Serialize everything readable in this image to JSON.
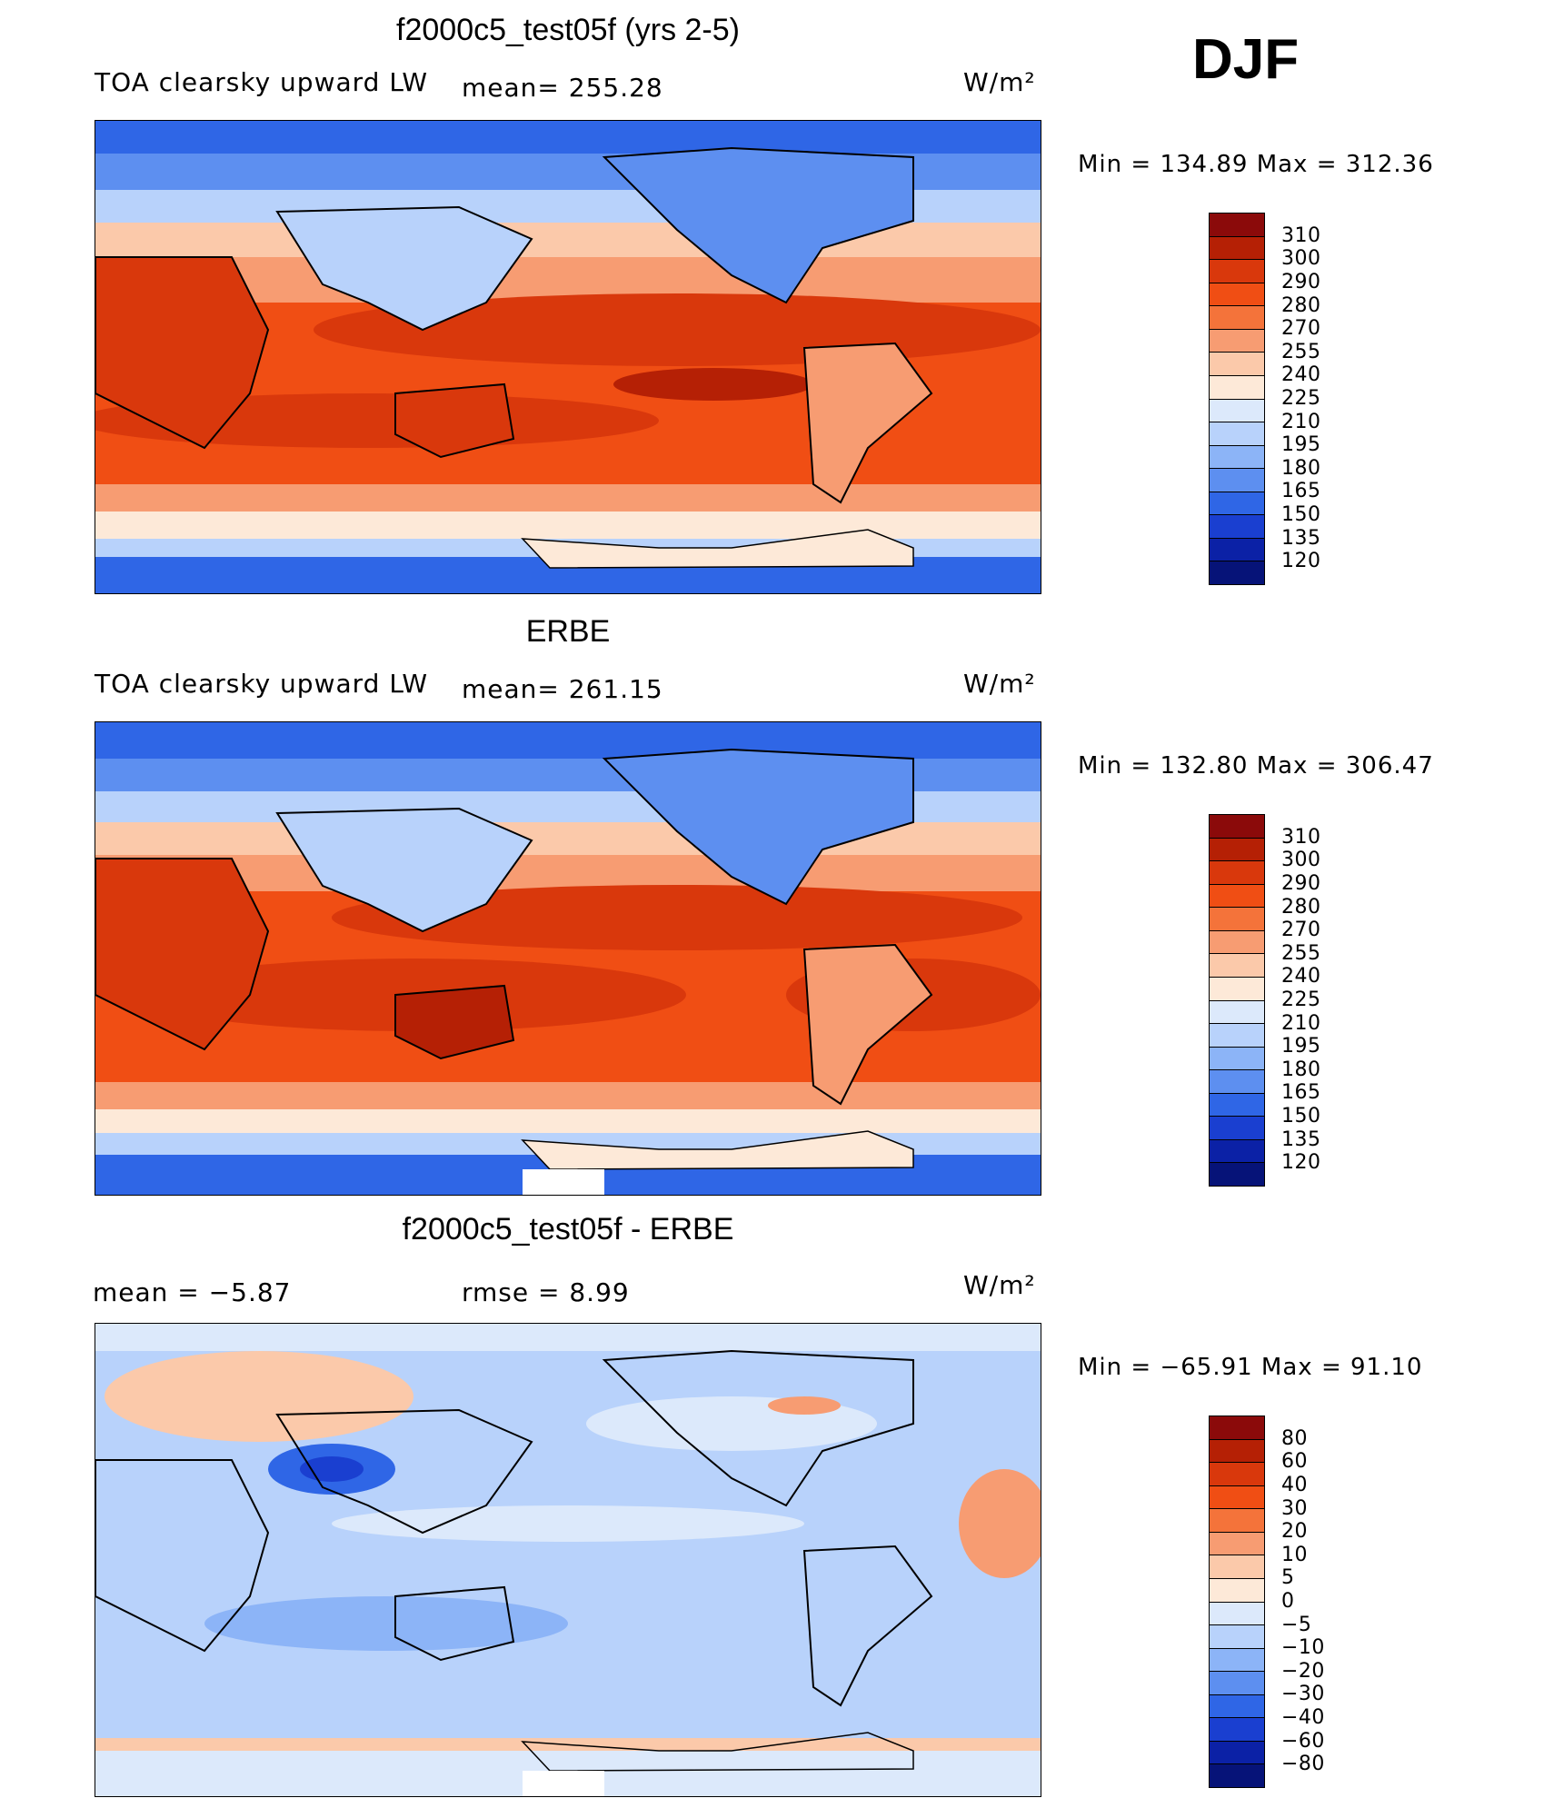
{
  "season": "DJF",
  "units_label": "W/m²",
  "panels": [
    {
      "id": "model",
      "title": "f2000c5_test05f (yrs 2-5)",
      "subtitle_left": "TOA clearsky upward LW",
      "subtitle_mid": "mean= 255.28",
      "units": "W/m²",
      "minmax": "Min  =  134.89  Max  =  312.36",
      "colorbar": {
        "labels": [
          "310",
          "300",
          "290",
          "280",
          "270",
          "255",
          "240",
          "225",
          "210",
          "195",
          "180",
          "165",
          "150",
          "135",
          "120"
        ],
        "colors": [
          "#8b0a0a",
          "#b52005",
          "#d9380c",
          "#f04e14",
          "#f4733a",
          "#f79c72",
          "#fbc9aa",
          "#fde9d8",
          "#dce9fb",
          "#b8d2fb",
          "#8cb4f7",
          "#5d8ff0",
          "#2f66e6",
          "#1a3fd0",
          "#0b21a6",
          "#061378"
        ]
      }
    },
    {
      "id": "obs",
      "title": "ERBE",
      "subtitle_left": "TOA clearsky upward LW",
      "subtitle_mid": "mean= 261.15",
      "units": "W/m²",
      "minmax": "Min  =  132.80  Max  =  306.47",
      "colorbar": {
        "labels": [
          "310",
          "300",
          "290",
          "280",
          "270",
          "255",
          "240",
          "225",
          "210",
          "195",
          "180",
          "165",
          "150",
          "135",
          "120"
        ],
        "colors": [
          "#8b0a0a",
          "#b52005",
          "#d9380c",
          "#f04e14",
          "#f4733a",
          "#f79c72",
          "#fbc9aa",
          "#fde9d8",
          "#dce9fb",
          "#b8d2fb",
          "#8cb4f7",
          "#5d8ff0",
          "#2f66e6",
          "#1a3fd0",
          "#0b21a6",
          "#061378"
        ]
      }
    },
    {
      "id": "diff",
      "title": "f2000c5_test05f - ERBE",
      "subtitle_left": "mean  =    −5.87",
      "subtitle_mid": "rmse  =     8.99",
      "units": "W/m²",
      "minmax": "Min  =  −65.91  Max  =   91.10",
      "colorbar": {
        "labels": [
          "80",
          "60",
          "40",
          "30",
          "20",
          "10",
          "5",
          "0",
          "−5",
          "−10",
          "−20",
          "−30",
          "−40",
          "−60",
          "−80"
        ],
        "colors": [
          "#8b0a0a",
          "#b52005",
          "#d9380c",
          "#f04e14",
          "#f4733a",
          "#f79c72",
          "#fbc9aa",
          "#fde9d8",
          "#dce9fb",
          "#b8d2fb",
          "#8cb4f7",
          "#5d8ff0",
          "#2f66e6",
          "#1a3fd0",
          "#0b21a6",
          "#061378"
        ]
      }
    }
  ]
}
